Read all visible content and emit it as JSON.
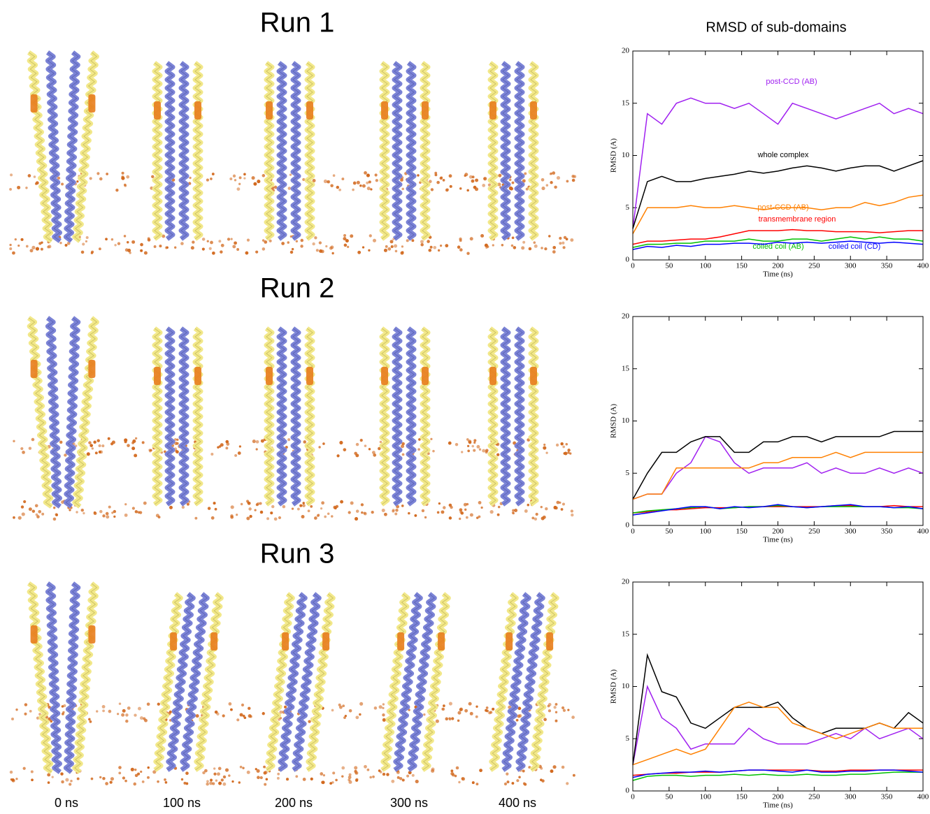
{
  "figure": {
    "runs": [
      "Run 1",
      "Run 2",
      "Run 3"
    ],
    "times": [
      "0 ns",
      "100 ns",
      "200 ns",
      "300 ns",
      "400 ns"
    ]
  },
  "chart_data": [
    {
      "type": "line",
      "title": "RMSD of sub-domains",
      "xlabel": "Time (ns)",
      "ylabel": "RMSD (A)",
      "x": [
        0,
        20,
        40,
        60,
        80,
        100,
        120,
        140,
        160,
        180,
        200,
        220,
        240,
        260,
        280,
        300,
        320,
        340,
        360,
        380,
        400
      ],
      "xlim": [
        0,
        400
      ],
      "ylim": [
        0,
        20
      ],
      "xticks": [
        0,
        50,
        100,
        150,
        200,
        250,
        300,
        350,
        400
      ],
      "yticks": [
        0,
        5,
        10,
        15,
        20
      ],
      "series": [
        {
          "name": "post-CCD (AB)",
          "color": "#a020f0",
          "values": [
            3,
            14,
            13,
            15,
            15.5,
            15,
            15,
            14.5,
            15,
            14,
            13,
            15,
            14.5,
            14,
            13.5,
            14,
            14.5,
            15,
            14,
            14.5,
            14
          ]
        },
        {
          "name": "whole complex",
          "color": "#000000",
          "values": [
            3,
            7.5,
            8,
            7.5,
            7.5,
            7.8,
            8,
            8.2,
            8.5,
            8.3,
            8.5,
            8.8,
            9,
            8.8,
            8.5,
            8.8,
            9,
            9,
            8.5,
            9,
            9.5
          ]
        },
        {
          "name": "post-CCD (AB)",
          "color": "#ff8000",
          "values": [
            2.5,
            5,
            5,
            5,
            5.2,
            5,
            5,
            5.2,
            5,
            4.8,
            5,
            5,
            5,
            4.8,
            5,
            5,
            5.5,
            5.2,
            5.5,
            6,
            6.2
          ]
        },
        {
          "name": "transmembrane region",
          "color": "#ff0000",
          "values": [
            1.5,
            1.8,
            1.8,
            1.9,
            2,
            2,
            2.2,
            2.5,
            2.8,
            2.8,
            2.8,
            2.9,
            2.8,
            2.8,
            2.7,
            2.7,
            2.7,
            2.6,
            2.7,
            2.8,
            2.8
          ]
        },
        {
          "name": "coiled coil (AB)",
          "color": "#00c000",
          "values": [
            1.2,
            1.5,
            1.5,
            1.6,
            1.6,
            1.8,
            1.8,
            1.8,
            2,
            1.8,
            1.8,
            2,
            2,
            1.8,
            2,
            2.2,
            2,
            2.2,
            2,
            2,
            1.8
          ]
        },
        {
          "name": "coiled coil (CD)",
          "color": "#0000ff",
          "values": [
            1,
            1.3,
            1.2,
            1.4,
            1.3,
            1.5,
            1.5,
            1.6,
            1.6,
            1.5,
            1.7,
            1.6,
            1.7,
            1.6,
            1.7,
            1.8,
            1.7,
            1.6,
            1.7,
            1.6,
            1.5
          ]
        }
      ]
    },
    {
      "type": "line",
      "xlabel": "Time (ns)",
      "ylabel": "RMSD (A)",
      "x": [
        0,
        20,
        40,
        60,
        80,
        100,
        120,
        140,
        160,
        180,
        200,
        220,
        240,
        260,
        280,
        300,
        320,
        340,
        360,
        380,
        400
      ],
      "xlim": [
        0,
        400
      ],
      "ylim": [
        0,
        20
      ],
      "xticks": [
        0,
        50,
        100,
        150,
        200,
        250,
        300,
        350,
        400
      ],
      "yticks": [
        0,
        5,
        10,
        15,
        20
      ],
      "series": [
        {
          "color": "#a020f0",
          "values": [
            2.5,
            3,
            3,
            5,
            6,
            8.5,
            8,
            6,
            5,
            5.5,
            5.5,
            5.5,
            6,
            5,
            5.5,
            5,
            5,
            5.5,
            5,
            5.5,
            5
          ]
        },
        {
          "color": "#000000",
          "values": [
            2.5,
            5,
            7,
            7,
            8,
            8.5,
            8.5,
            7,
            7,
            8,
            8,
            8.5,
            8.5,
            8,
            8.5,
            8.5,
            8.5,
            8.5,
            9,
            9,
            9
          ]
        },
        {
          "color": "#ff8000",
          "values": [
            2.5,
            3,
            3,
            5.5,
            5.5,
            5.5,
            5.5,
            5.5,
            5.5,
            6,
            6,
            6.5,
            6.5,
            6.5,
            7,
            6.5,
            7,
            7,
            7,
            7,
            7
          ]
        },
        {
          "color": "#ff0000",
          "values": [
            1.2,
            1.3,
            1.5,
            1.5,
            1.6,
            1.7,
            1.7,
            1.7,
            1.8,
            1.8,
            1.8,
            1.8,
            1.8,
            1.8,
            1.9,
            1.9,
            1.8,
            1.8,
            1.9,
            1.8,
            1.8
          ]
        },
        {
          "color": "#00c000",
          "values": [
            1.2,
            1.4,
            1.5,
            1.6,
            1.7,
            1.8,
            1.6,
            1.7,
            1.8,
            1.8,
            1.9,
            1.8,
            1.7,
            1.8,
            1.8,
            1.8,
            1.8,
            1.8,
            1.7,
            1.7,
            1.6
          ]
        },
        {
          "color": "#0000ff",
          "values": [
            1,
            1.2,
            1.4,
            1.6,
            1.8,
            1.8,
            1.6,
            1.8,
            1.7,
            1.8,
            2,
            1.8,
            1.7,
            1.8,
            1.9,
            2,
            1.8,
            1.8,
            1.7,
            1.8,
            1.6
          ]
        }
      ]
    },
    {
      "type": "line",
      "xlabel": "Time (ns)",
      "ylabel": "RMSD (A)",
      "x": [
        0,
        20,
        40,
        60,
        80,
        100,
        120,
        140,
        160,
        180,
        200,
        220,
        240,
        260,
        280,
        300,
        320,
        340,
        360,
        380,
        400
      ],
      "xlim": [
        0,
        400
      ],
      "ylim": [
        0,
        20
      ],
      "xticks": [
        0,
        50,
        100,
        150,
        200,
        250,
        300,
        350,
        400
      ],
      "yticks": [
        0,
        5,
        10,
        15,
        20
      ],
      "series": [
        {
          "color": "#a020f0",
          "values": [
            2.5,
            10,
            7,
            6,
            4,
            4.5,
            4.5,
            4.5,
            6,
            5,
            4.5,
            4.5,
            4.5,
            5,
            5.5,
            5,
            6,
            5,
            5.5,
            6,
            5
          ]
        },
        {
          "color": "#000000",
          "values": [
            2.5,
            13,
            9.5,
            9,
            6.5,
            6,
            7,
            8,
            8,
            8,
            8.5,
            7,
            6,
            5.5,
            6,
            6,
            6,
            6.5,
            6,
            7.5,
            6.5
          ]
        },
        {
          "color": "#ff8000",
          "values": [
            2.5,
            3,
            3.5,
            4,
            3.5,
            4,
            6,
            8,
            8.5,
            8,
            8,
            6.5,
            6,
            5.5,
            5,
            5.5,
            6,
            6.5,
            6,
            6,
            6
          ]
        },
        {
          "color": "#ff0000",
          "values": [
            1.5,
            1.6,
            1.7,
            1.7,
            1.8,
            1.8,
            1.8,
            1.9,
            2,
            2,
            2,
            2,
            2,
            1.9,
            1.9,
            2,
            2,
            2,
            2,
            2,
            2
          ]
        },
        {
          "color": "#00c000",
          "values": [
            1,
            1.4,
            1.5,
            1.5,
            1.4,
            1.5,
            1.5,
            1.6,
            1.5,
            1.6,
            1.5,
            1.5,
            1.6,
            1.5,
            1.5,
            1.6,
            1.6,
            1.7,
            1.8,
            1.8,
            1.8
          ]
        },
        {
          "color": "#0000ff",
          "values": [
            1.3,
            1.6,
            1.7,
            1.8,
            1.8,
            1.9,
            1.8,
            1.9,
            2,
            2,
            1.9,
            1.8,
            2,
            1.8,
            1.8,
            1.9,
            1.9,
            2,
            2,
            1.9,
            1.8
          ]
        }
      ]
    }
  ]
}
